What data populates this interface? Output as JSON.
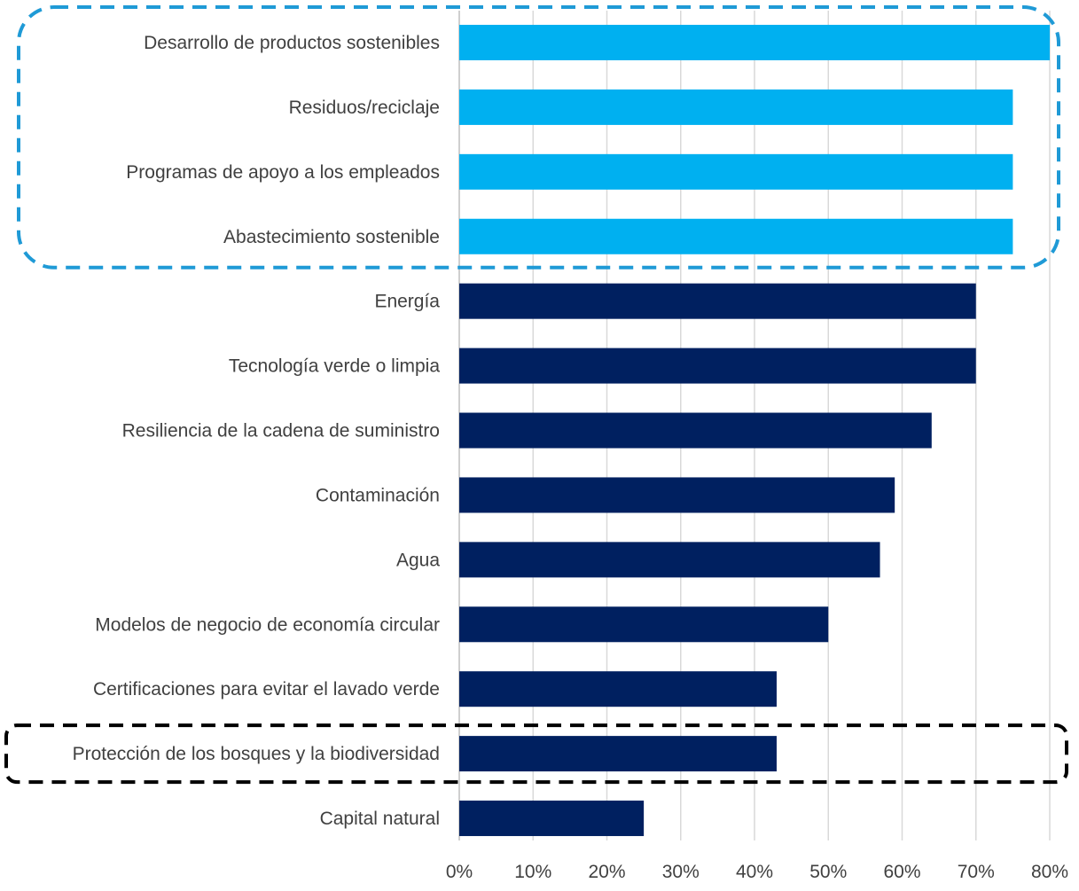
{
  "chart_data": {
    "type": "bar",
    "orientation": "horizontal",
    "title": "",
    "xlabel": "",
    "ylabel": "",
    "xlim": [
      0,
      80
    ],
    "x_unit": "%",
    "x_ticks": [
      "0%",
      "10%",
      "20%",
      "30%",
      "40%",
      "50%",
      "60%",
      "70%",
      "80%"
    ],
    "x_tick_values": [
      0,
      10,
      20,
      30,
      40,
      50,
      60,
      70,
      80
    ],
    "grid": "vertical",
    "legend": "none",
    "categories": [
      "Desarrollo de productos sostenibles",
      "Residuos/reciclaje",
      "Programas de apoyo a los empleados",
      "Abastecimiento sostenible",
      "Energía",
      "Tecnología verde o limpia",
      "Resiliencia de la cadena de suministro",
      "Contaminación",
      "Agua",
      "Modelos de negocio de economía circular",
      "Certificaciones para evitar el lavado verde",
      "Protección de los bosques y la biodiversidad",
      "Capital natural"
    ],
    "values": [
      80,
      75,
      75,
      75,
      70,
      70,
      64,
      59,
      57,
      50,
      43,
      43,
      25
    ],
    "highlighted_top_categories": [
      "Desarrollo de productos sostenibles",
      "Residuos/reciclaje",
      "Programas de apoyo a los empleados",
      "Abastecimiento sostenible"
    ],
    "highlighted_black_categories": [
      "Protección de los bosques y la biodiversidad"
    ],
    "colors": {
      "highlight_bar": "#00B0F0",
      "default_bar": "#002060",
      "highlight_box": "#1F9AD6",
      "secondary_box": "#000000",
      "grid": "#D9D9D9",
      "text": "#404040"
    }
  }
}
